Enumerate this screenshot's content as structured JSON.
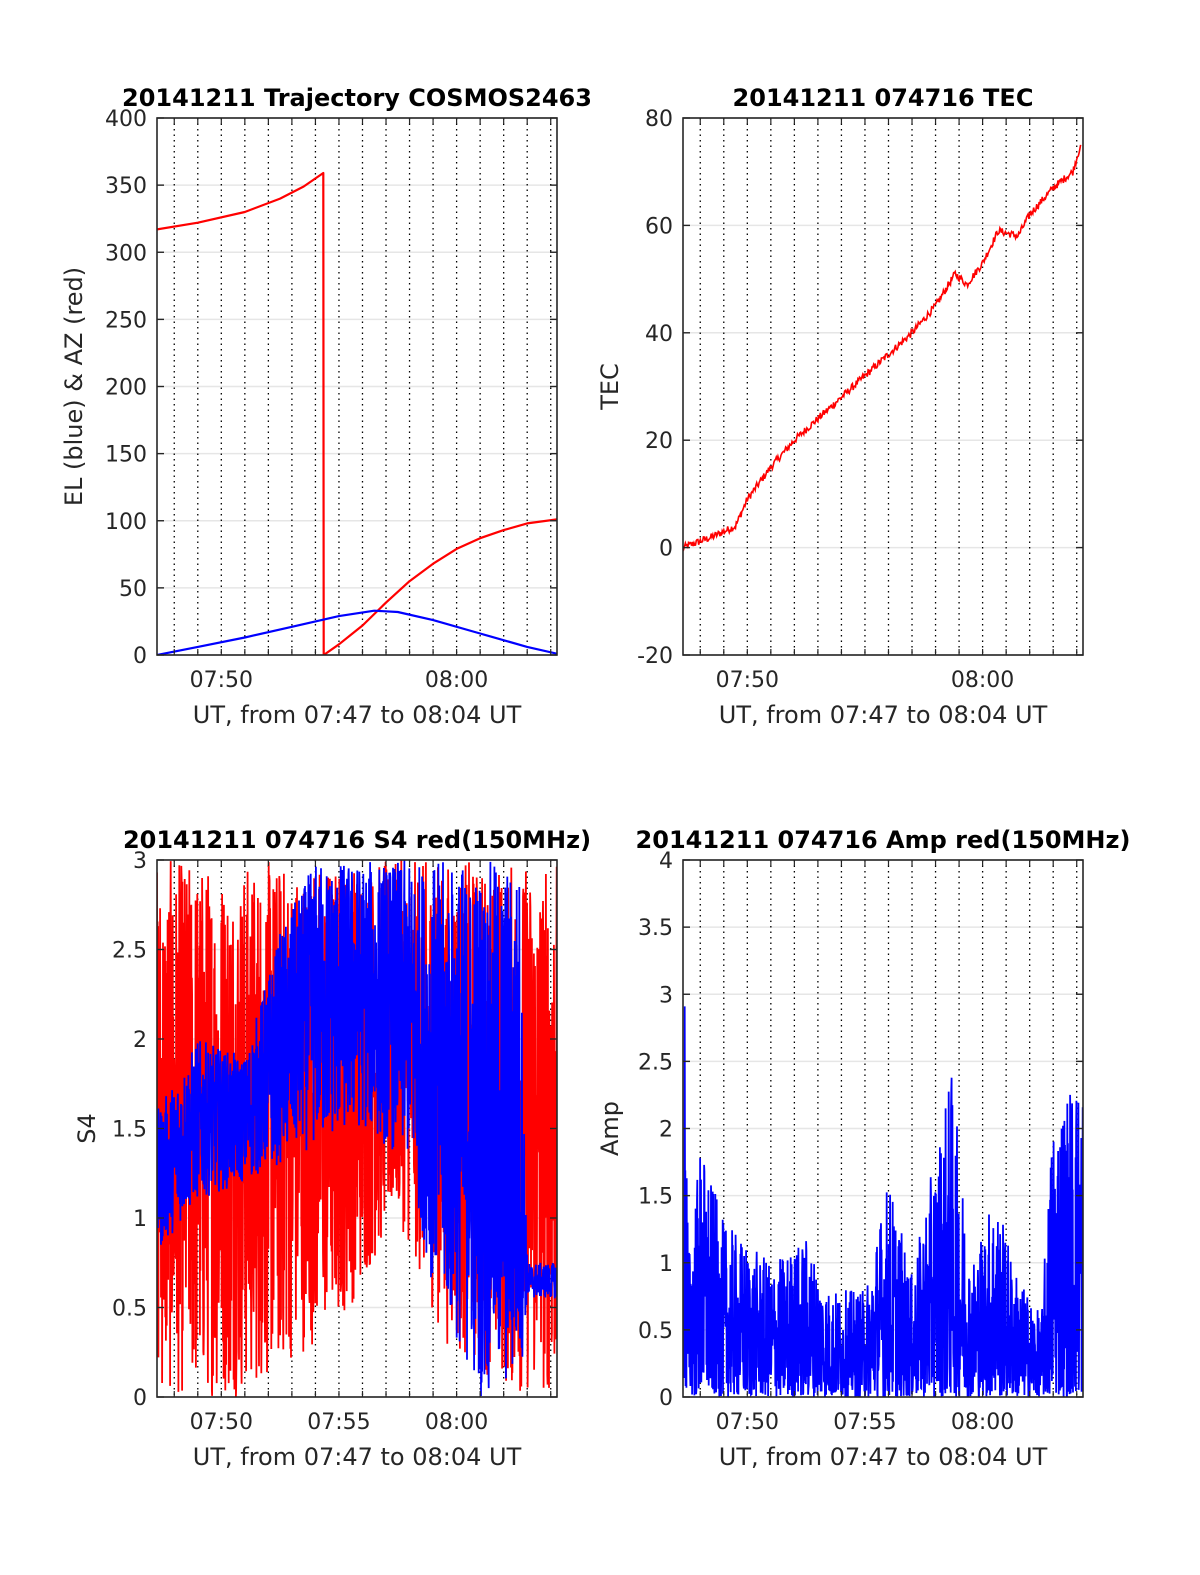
{
  "colors": {
    "red": "#ff0000",
    "blue": "#0000ff",
    "grid": "#000000",
    "axis": "#262626"
  },
  "chart_data": [
    {
      "id": "trajectory",
      "type": "line",
      "title": "20141211 Trajectory COSMOS2463",
      "xlabel": "UT, from 07:47 to 08:04 UT",
      "ylabel": "EL (blue) & AZ (red)",
      "xlim": [
        "07:47:16",
        "08:04:16"
      ],
      "ylim": [
        0,
        400
      ],
      "yticks": [
        0,
        50,
        100,
        150,
        200,
        250,
        300,
        350,
        400
      ],
      "xticks": [
        "07:50",
        "08:00"
      ],
      "grid": "x dotted every minute, y solid light",
      "series": [
        {
          "color": "red",
          "points": [
            [
              "07:47:16",
              317
            ],
            [
              "07:49:00",
              322
            ],
            [
              "07:51:00",
              330
            ],
            [
              "07:52:30",
              340
            ],
            [
              "07:53:30",
              349
            ],
            [
              "07:54:20",
              359
            ],
            [
              "07:54:21",
              0
            ],
            [
              "07:55:00",
              8
            ],
            [
              "07:56:00",
              22
            ],
            [
              "07:57:00",
              39
            ],
            [
              "07:58:00",
              55
            ],
            [
              "07:59:00",
              68
            ],
            [
              "08:00:00",
              79
            ],
            [
              "08:01:00",
              87
            ],
            [
              "08:02:00",
              93
            ],
            [
              "08:03:00",
              98
            ],
            [
              "08:04:16",
              101
            ]
          ]
        },
        {
          "color": "blue",
          "points": [
            [
              "07:47:16",
              0
            ],
            [
              "07:49:00",
              6
            ],
            [
              "07:51:00",
              13
            ],
            [
              "07:53:00",
              21
            ],
            [
              "07:55:00",
              29
            ],
            [
              "07:56:30",
              33
            ],
            [
              "07:57:30",
              32
            ],
            [
              "07:59:00",
              26
            ],
            [
              "08:01:00",
              16
            ],
            [
              "08:03:00",
              6
            ],
            [
              "08:04:16",
              1
            ]
          ]
        }
      ]
    },
    {
      "id": "tec",
      "type": "line",
      "title": "20141211 074716 TEC",
      "xlabel": "UT, from 07:47 to 08:04 UT",
      "ylabel": "TEC",
      "xlim": [
        "07:47:16",
        "08:04:16"
      ],
      "ylim": [
        -20,
        80
      ],
      "yticks": [
        -20,
        0,
        20,
        40,
        60,
        80
      ],
      "xticks": [
        "07:50",
        "08:00"
      ],
      "grid": "x dotted every minute, y solid light",
      "series": [
        {
          "color": "red",
          "points": [
            [
              "07:47:16",
              0
            ],
            [
              "07:48:30",
              2
            ],
            [
              "07:49:30",
              4
            ],
            [
              "07:50:00",
              9
            ],
            [
              "07:51:00",
              15
            ],
            [
              "07:52:00",
              20
            ],
            [
              "07:53:00",
              24
            ],
            [
              "07:54:00",
              28
            ],
            [
              "07:55:00",
              32
            ],
            [
              "07:56:00",
              36
            ],
            [
              "07:57:00",
              40
            ],
            [
              "07:58:00",
              45
            ],
            [
              "07:58:50",
              51
            ],
            [
              "07:59:20",
              49
            ],
            [
              "08:00:00",
              53
            ],
            [
              "08:00:40",
              59
            ],
            [
              "08:01:30",
              58
            ],
            [
              "08:02:00",
              62
            ],
            [
              "08:03:00",
              67
            ],
            [
              "08:03:50",
              70
            ],
            [
              "08:04:10",
              75
            ]
          ]
        }
      ]
    },
    {
      "id": "s4",
      "type": "line",
      "title": "20141211 074716 S4 red(150MHz)",
      "xlabel": "UT, from 07:47 to 08:04 UT",
      "ylabel": "S4",
      "xlim": [
        "07:47:16",
        "08:04:16"
      ],
      "ylim": [
        0,
        3
      ],
      "yticks": [
        0,
        0.5,
        1,
        1.5,
        2,
        2.5,
        3
      ],
      "xticks": [
        "07:50",
        "07:55",
        "08:00"
      ],
      "grid": "x dotted every minute, y solid light",
      "series": [
        {
          "color": "red",
          "note_shape": "dense noise clipped 0..3",
          "envelope": [
            [
              "07:47:16",
              0.0,
              3.0
            ],
            [
              "07:51:00",
              0.0,
              3.0
            ],
            [
              "07:54:00",
              0.3,
              3.0
            ],
            [
              "07:55:30",
              0.5,
              3.0
            ],
            [
              "07:57:30",
              1.0,
              3.0
            ],
            [
              "07:59:30",
              0.3,
              3.0
            ],
            [
              "08:02:30",
              0.0,
              3.0
            ],
            [
              "08:04:16",
              0.0,
              3.0
            ]
          ]
        },
        {
          "color": "blue",
          "note_shape": "dense noise",
          "envelope": [
            [
              "07:47:16",
              0.8,
              1.6
            ],
            [
              "07:49:00",
              1.1,
              2.0
            ],
            [
              "07:51:00",
              1.2,
              1.9
            ],
            [
              "07:52:30",
              1.3,
              2.6
            ],
            [
              "07:54:00",
              1.4,
              3.0
            ],
            [
              "07:56:00",
              1.5,
              3.0
            ],
            [
              "07:58:00",
              1.3,
              3.0
            ],
            [
              "07:59:00",
              0.6,
              3.0
            ],
            [
              "08:01:00",
              0.0,
              3.0
            ],
            [
              "08:02:40",
              0.0,
              3.0
            ],
            [
              "08:03:00",
              0.55,
              0.75
            ],
            [
              "08:04:16",
              0.55,
              0.75
            ]
          ]
        }
      ]
    },
    {
      "id": "amp",
      "type": "line",
      "title": "20141211 074716 Amp red(150MHz)",
      "xlabel": "UT, from 07:47 to 08:04 UT",
      "ylabel": "Amp",
      "xlim": [
        "07:47:16",
        "08:04:16"
      ],
      "ylim": [
        0,
        4
      ],
      "yticks": [
        0,
        0.5,
        1,
        1.5,
        2,
        2.5,
        3,
        3.5,
        4
      ],
      "xticks": [
        "07:50",
        "07:55",
        "08:00"
      ],
      "grid": "x dotted every minute, y solid light",
      "series": [
        {
          "color": "blue",
          "note_shape": "dense noise from 0",
          "envelope": [
            [
              "07:47:16",
              0,
              1.2
            ],
            [
              "07:47:20",
              0,
              3.35
            ],
            [
              "07:47:30",
              0,
              1.1
            ],
            [
              "07:48:00",
              0,
              1.9
            ],
            [
              "07:49:00",
              0,
              1.3
            ],
            [
              "07:51:00",
              0,
              1.0
            ],
            [
              "07:52:30",
              0,
              1.2
            ],
            [
              "07:53:30",
              0,
              0.8
            ],
            [
              "07:55:00",
              0,
              0.8
            ],
            [
              "07:56:00",
              0,
              1.65
            ],
            [
              "07:57:00",
              0,
              0.9
            ],
            [
              "07:58:40",
              0,
              2.45
            ],
            [
              "07:59:30",
              0,
              1.0
            ],
            [
              "08:00:30",
              0,
              1.55
            ],
            [
              "08:01:30",
              0,
              0.9
            ],
            [
              "08:02:30",
              0,
              0.6
            ],
            [
              "08:03:00",
              0,
              2.2
            ],
            [
              "08:04:16",
              0,
              2.5
            ]
          ]
        }
      ]
    }
  ]
}
